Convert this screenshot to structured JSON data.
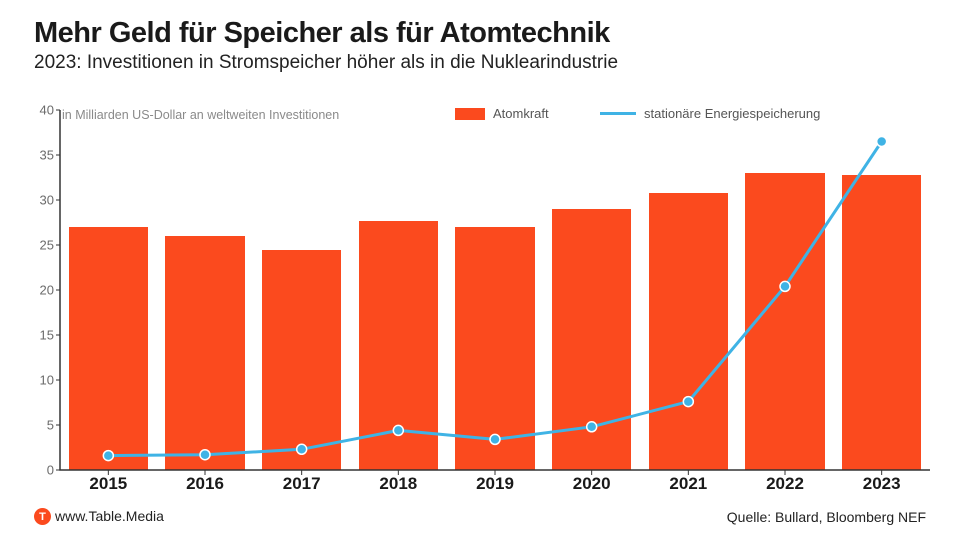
{
  "title": "Mehr Geld für Speicher als für Atomtechnik",
  "title_fontsize": 29,
  "subtitle": "2023: Investitionen in Stromspeicher höher als in die Nuklearindustrie",
  "subtitle_fontsize": 19,
  "axis_caption": "in Milliarden US-Dollar an weltweiten Investitionen",
  "legend": {
    "bars_label": "Atomkraft",
    "line_label": "stationäre Energiespeicherung"
  },
  "chart": {
    "type": "bar+line",
    "categories": [
      "2015",
      "2016",
      "2017",
      "2018",
      "2019",
      "2020",
      "2021",
      "2022",
      "2023"
    ],
    "bar_values": [
      27.0,
      26.0,
      24.5,
      27.7,
      27.0,
      29.0,
      30.8,
      33.0,
      32.8
    ],
    "line_values": [
      1.6,
      1.7,
      2.3,
      4.4,
      3.4,
      4.8,
      7.6,
      20.4,
      36.5
    ],
    "ylim": [
      0,
      40
    ],
    "ytick_step": 5,
    "bar_color": "#fb4a1e",
    "line_color": "#3fb3e5",
    "marker_color": "#3fb3e5",
    "marker_radius": 5,
    "line_width": 3,
    "grid_color": "none",
    "axis_color": "#333333",
    "background_color": "#ffffff",
    "bar_width_ratio": 0.82,
    "xlabel_fontsize": 17,
    "ytick_fontsize": 13
  },
  "footer": {
    "logo_letter": "T",
    "site": "www.Table.Media",
    "source": "Quelle: Bullard, Bloomberg NEF"
  }
}
